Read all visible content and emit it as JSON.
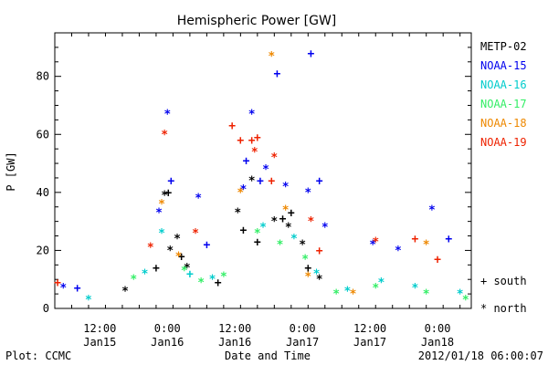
{
  "chart_data": {
    "type": "scatter",
    "title": "Hemispheric Power [GW]",
    "ylabel": "P [GW]",
    "xlabel": "Date and Time",
    "ylim": [
      0,
      95
    ],
    "yticks": [
      0,
      20,
      40,
      60,
      80
    ],
    "xlim": [
      "2012-01-15 04:00",
      "2012-01-18 06:00"
    ],
    "xticks": [
      {
        "t": "2012-01-15 12:00",
        "time": "12:00",
        "date": "Jan15"
      },
      {
        "t": "2012-01-16 00:00",
        "time": "0:00",
        "date": "Jan16"
      },
      {
        "t": "2012-01-16 12:00",
        "time": "12:00",
        "date": "Jan16"
      },
      {
        "t": "2012-01-17 00:00",
        "time": "0:00",
        "date": "Jan17"
      },
      {
        "t": "2012-01-17 12:00",
        "time": "12:00",
        "date": "Jan17"
      },
      {
        "t": "2012-01-18 00:00",
        "time": "0:00",
        "date": "Jan18"
      }
    ],
    "legend_position": "right",
    "marker_legend": [
      {
        "symbol": "+",
        "label": "south"
      },
      {
        "symbol": "*",
        "label": "north"
      }
    ],
    "series": [
      {
        "name": "METP-02",
        "color": "#000000",
        "points": [
          {
            "x": "2012-01-15 22:00",
            "y": 14,
            "m": "+"
          },
          {
            "x": "2012-01-15 23:30",
            "y": 39,
            "m": "*"
          },
          {
            "x": "2012-01-16 00:10",
            "y": 40,
            "m": "+"
          },
          {
            "x": "2012-01-16 00:30",
            "y": 20,
            "m": "*"
          },
          {
            "x": "2012-01-16 01:45",
            "y": 24,
            "m": "*"
          },
          {
            "x": "2012-01-16 02:30",
            "y": 18,
            "m": "+"
          },
          {
            "x": "2012-01-16 03:30",
            "y": 14,
            "m": "*"
          },
          {
            "x": "2012-01-16 09:00",
            "y": 9,
            "m": "+"
          },
          {
            "x": "2012-01-16 12:30",
            "y": 33,
            "m": "*"
          },
          {
            "x": "2012-01-16 13:30",
            "y": 27,
            "m": "+"
          },
          {
            "x": "2012-01-16 15:00",
            "y": 44,
            "m": "*"
          },
          {
            "x": "2012-01-16 16:00",
            "y": 23,
            "m": "+"
          },
          {
            "x": "2012-01-16 19:00",
            "y": 30,
            "m": "*"
          },
          {
            "x": "2012-01-16 20:30",
            "y": 31,
            "m": "+"
          },
          {
            "x": "2012-01-16 21:30",
            "y": 28,
            "m": "*"
          },
          {
            "x": "2012-01-16 22:00",
            "y": 33,
            "m": "+"
          },
          {
            "x": "2012-01-17 00:00",
            "y": 22,
            "m": "*"
          },
          {
            "x": "2012-01-17 01:00",
            "y": 14,
            "m": "+"
          },
          {
            "x": "2012-01-17 03:00",
            "y": 10,
            "m": "*"
          },
          {
            "x": "2012-01-15 16:30",
            "y": 6,
            "m": "*"
          }
        ]
      },
      {
        "name": "NOAA-15",
        "color": "#0000ee",
        "points": [
          {
            "x": "2012-01-15 05:30",
            "y": 7,
            "m": "*"
          },
          {
            "x": "2012-01-15 08:00",
            "y": 7,
            "m": "+"
          },
          {
            "x": "2012-01-15 22:30",
            "y": 33,
            "m": "*"
          },
          {
            "x": "2012-01-16 00:00",
            "y": 67,
            "m": "*"
          },
          {
            "x": "2012-01-16 00:40",
            "y": 44,
            "m": "+"
          },
          {
            "x": "2012-01-16 05:30",
            "y": 38,
            "m": "*"
          },
          {
            "x": "2012-01-16 07:00",
            "y": 22,
            "m": "+"
          },
          {
            "x": "2012-01-16 13:30",
            "y": 41,
            "m": "*"
          },
          {
            "x": "2012-01-16 14:00",
            "y": 51,
            "m": "+"
          },
          {
            "x": "2012-01-16 15:00",
            "y": 67,
            "m": "*"
          },
          {
            "x": "2012-01-16 16:30",
            "y": 44,
            "m": "+"
          },
          {
            "x": "2012-01-16 17:30",
            "y": 48,
            "m": "*"
          },
          {
            "x": "2012-01-16 19:30",
            "y": 81,
            "m": "+"
          },
          {
            "x": "2012-01-16 21:00",
            "y": 42,
            "m": "*"
          },
          {
            "x": "2012-01-17 01:30",
            "y": 88,
            "m": "+"
          },
          {
            "x": "2012-01-17 01:00",
            "y": 40,
            "m": "*"
          },
          {
            "x": "2012-01-17 03:00",
            "y": 44,
            "m": "+"
          },
          {
            "x": "2012-01-17 04:00",
            "y": 28,
            "m": "*"
          },
          {
            "x": "2012-01-17 12:30",
            "y": 22,
            "m": "*"
          },
          {
            "x": "2012-01-17 17:00",
            "y": 20,
            "m": "*"
          },
          {
            "x": "2012-01-17 23:00",
            "y": 34,
            "m": "*"
          },
          {
            "x": "2012-01-18 02:00",
            "y": 24,
            "m": "+"
          }
        ]
      },
      {
        "name": "NOAA-16",
        "color": "#00cccc",
        "points": [
          {
            "x": "2012-01-15 10:00",
            "y": 3,
            "m": "*"
          },
          {
            "x": "2012-01-15 20:00",
            "y": 12,
            "m": "*"
          },
          {
            "x": "2012-01-15 23:00",
            "y": 26,
            "m": "*"
          },
          {
            "x": "2012-01-16 04:00",
            "y": 12,
            "m": "+"
          },
          {
            "x": "2012-01-16 08:00",
            "y": 10,
            "m": "*"
          },
          {
            "x": "2012-01-16 17:00",
            "y": 28,
            "m": "*"
          },
          {
            "x": "2012-01-16 22:30",
            "y": 24,
            "m": "*"
          },
          {
            "x": "2012-01-17 02:30",
            "y": 12,
            "m": "*"
          },
          {
            "x": "2012-01-17 08:00",
            "y": 6,
            "m": "*"
          },
          {
            "x": "2012-01-17 14:00",
            "y": 9,
            "m": "*"
          },
          {
            "x": "2012-01-17 20:00",
            "y": 7,
            "m": "*"
          },
          {
            "x": "2012-01-18 04:00",
            "y": 5,
            "m": "*"
          }
        ]
      },
      {
        "name": "NOAA-17",
        "color": "#33ee66",
        "points": [
          {
            "x": "2012-01-15 18:00",
            "y": 10,
            "m": "*"
          },
          {
            "x": "2012-01-16 03:00",
            "y": 13,
            "m": "*"
          },
          {
            "x": "2012-01-16 06:00",
            "y": 9,
            "m": "*"
          },
          {
            "x": "2012-01-16 10:00",
            "y": 11,
            "m": "*"
          },
          {
            "x": "2012-01-16 16:00",
            "y": 26,
            "m": "*"
          },
          {
            "x": "2012-01-16 20:00",
            "y": 22,
            "m": "*"
          },
          {
            "x": "2012-01-17 00:30",
            "y": 17,
            "m": "*"
          },
          {
            "x": "2012-01-17 06:00",
            "y": 5,
            "m": "*"
          },
          {
            "x": "2012-01-17 13:00",
            "y": 7,
            "m": "*"
          },
          {
            "x": "2012-01-17 22:00",
            "y": 5,
            "m": "*"
          },
          {
            "x": "2012-01-18 05:00",
            "y": 3,
            "m": "*"
          }
        ]
      },
      {
        "name": "NOAA-18",
        "color": "#ee8800",
        "points": [
          {
            "x": "2012-01-15 23:00",
            "y": 36,
            "m": "*"
          },
          {
            "x": "2012-01-16 02:00",
            "y": 18,
            "m": "*"
          },
          {
            "x": "2012-01-16 13:00",
            "y": 40,
            "m": "*"
          },
          {
            "x": "2012-01-16 18:30",
            "y": 87,
            "m": "*"
          },
          {
            "x": "2012-01-16 21:00",
            "y": 34,
            "m": "*"
          },
          {
            "x": "2012-01-17 01:00",
            "y": 11,
            "m": "*"
          },
          {
            "x": "2012-01-17 09:00",
            "y": 5,
            "m": "*"
          },
          {
            "x": "2012-01-17 22:00",
            "y": 22,
            "m": "*"
          }
        ]
      },
      {
        "name": "NOAA-19",
        "color": "#ee2200",
        "points": [
          {
            "x": "2012-01-15 04:30",
            "y": 9,
            "m": "+"
          },
          {
            "x": "2012-01-15 21:00",
            "y": 21,
            "m": "*"
          },
          {
            "x": "2012-01-15 23:30",
            "y": 60,
            "m": "*"
          },
          {
            "x": "2012-01-16 05:00",
            "y": 26,
            "m": "*"
          },
          {
            "x": "2012-01-16 11:30",
            "y": 63,
            "m": "+"
          },
          {
            "x": "2012-01-16 13:00",
            "y": 58,
            "m": "+"
          },
          {
            "x": "2012-01-16 15:00",
            "y": 58,
            "m": "+"
          },
          {
            "x": "2012-01-16 16:00",
            "y": 59,
            "m": "+"
          },
          {
            "x": "2012-01-16 15:30",
            "y": 54,
            "m": "*"
          },
          {
            "x": "2012-01-16 19:00",
            "y": 52,
            "m": "*"
          },
          {
            "x": "2012-01-16 18:30",
            "y": 44,
            "m": "+"
          },
          {
            "x": "2012-01-17 01:30",
            "y": 30,
            "m": "*"
          },
          {
            "x": "2012-01-17 03:00",
            "y": 20,
            "m": "+"
          },
          {
            "x": "2012-01-17 13:00",
            "y": 23,
            "m": "*"
          },
          {
            "x": "2012-01-17 20:00",
            "y": 24,
            "m": "+"
          },
          {
            "x": "2012-01-18 00:00",
            "y": 17,
            "m": "+"
          }
        ]
      }
    ]
  },
  "footer": {
    "plot_credit": "Plot: CCMC",
    "timestamp": "2012/01/18 06:00:07"
  }
}
